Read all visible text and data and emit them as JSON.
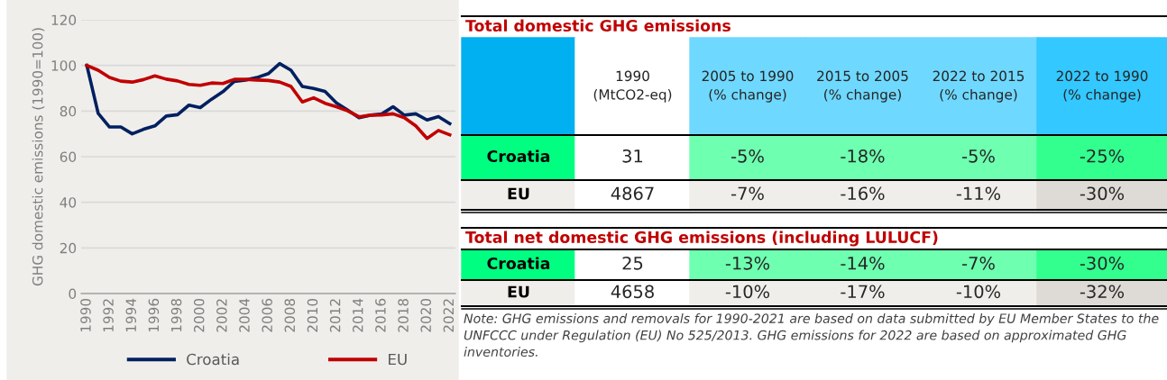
{
  "chart_data": [
    {
      "type": "line",
      "ylabel": "GHG domestic emissions (1990=100)",
      "x": [
        1990,
        1991,
        1992,
        1993,
        1994,
        1995,
        1996,
        1997,
        1998,
        1999,
        2000,
        2001,
        2002,
        2003,
        2004,
        2005,
        2006,
        2007,
        2008,
        2009,
        2010,
        2011,
        2012,
        2013,
        2014,
        2015,
        2016,
        2017,
        2018,
        2019,
        2020,
        2021,
        2022
      ],
      "series": [
        {
          "name": "Croatia",
          "color": "#002060",
          "values": [
            100,
            79,
            73,
            73,
            70,
            72,
            73.5,
            77.8,
            78.4,
            82.6,
            81.5,
            85.2,
            88.5,
            93,
            93.6,
            94.7,
            96.4,
            100.8,
            97.9,
            90.8,
            89.9,
            88.6,
            83.6,
            80.4,
            77.1,
            78.2,
            78.7,
            81.9,
            78.2,
            78.8,
            76.1,
            77.6,
            74.5
          ]
        },
        {
          "name": "EU",
          "color": "#c00000",
          "values": [
            100,
            97.9,
            94.7,
            93.1,
            92.7,
            93.8,
            95.4,
            94,
            93.2,
            91.7,
            91.3,
            92.3,
            92.1,
            93.9,
            93.9,
            93.6,
            93.4,
            92.7,
            90.8,
            84,
            85.8,
            83.4,
            81.9,
            80.1,
            77.5,
            78.2,
            78.3,
            78.8,
            77.1,
            73.5,
            68,
            71.5,
            69.6
          ]
        }
      ],
      "xlim": [
        1989.5,
        2022.5
      ],
      "xticks": [
        1990,
        1992,
        1994,
        1996,
        1998,
        2000,
        2002,
        2004,
        2006,
        2008,
        2010,
        2012,
        2014,
        2016,
        2018,
        2020,
        2022
      ],
      "ylim": [
        0,
        120
      ],
      "yticks": [
        0,
        20,
        40,
        60,
        80,
        100,
        120
      ],
      "grid": "y",
      "legend": "bottom",
      "marker": "none",
      "line_style": "solid"
    },
    {
      "type": "other",
      "title": "Total domestic GHG emissions",
      "categories": [
        null,
        "1990\n(MtCO2-eq)",
        "2005 to 1990\n(% change)",
        "2015 to 2005\n(% change)",
        "2022 to 2015\n(% change)",
        "2022 to 1990\n(% change)"
      ],
      "y_categories": [
        "Croatia",
        "EU"
      ],
      "cell_labels": [
        [
          "31",
          "-5%",
          "-18%",
          "-5%",
          "-25%"
        ],
        [
          "4867",
          "-7%",
          "-16%",
          "-11%",
          "-30%"
        ]
      ]
    },
    {
      "type": "other",
      "title": "Total net domestic GHG emissions (including LULUCF)",
      "y_categories": [
        "Croatia",
        "EU"
      ],
      "cell_labels": [
        [
          "25",
          "-13%",
          "-14%",
          "-7%",
          "-30%"
        ],
        [
          "4658",
          "-10%",
          "-17%",
          "-10%",
          "-32%"
        ]
      ],
      "annotations": [
        "Note: GHG emissions and removals for 1990-2021 are based on data submitted by EU Member States to the UNFCCC under Regulation (EU) No 525/2013. GHG emissions for 2022 are based on approximated GHG inventories."
      ]
    }
  ]
}
